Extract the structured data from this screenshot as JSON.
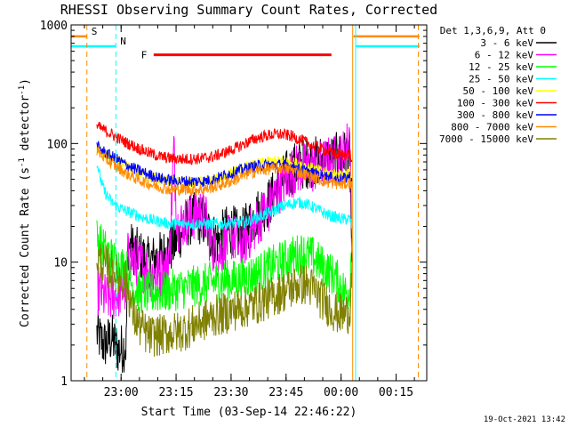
{
  "chart_data": {
    "type": "line",
    "title": "RHESSI Observing Summary Count Rates, Corrected",
    "xlabel": "Start Time (03-Sep-14 22:46:22)",
    "ylabel_parts": [
      "Corrected Count Rate (s",
      "-1",
      " detector",
      "-1",
      ")"
    ],
    "x_unit": "minutes since 22:46:22",
    "xlim": [
      0,
      97
    ],
    "ylim": [
      1,
      1000
    ],
    "y_scale": "log",
    "x_ticks": [
      {
        "t": 13.63,
        "label": "23:00"
      },
      {
        "t": 28.63,
        "label": "23:15"
      },
      {
        "t": 43.63,
        "label": "23:30"
      },
      {
        "t": 58.63,
        "label": "23:45"
      },
      {
        "t": 73.63,
        "label": "00:00"
      },
      {
        "t": 88.63,
        "label": "00:15"
      }
    ],
    "y_ticks": [
      {
        "v": 1,
        "label": "1"
      },
      {
        "v": 10,
        "label": "10"
      },
      {
        "v": 100,
        "label": "100"
      },
      {
        "v": 1000,
        "label": "1000"
      }
    ],
    "legend_header": "Det 1,3,6,9, Att 0",
    "legend_position": "right",
    "series": [
      {
        "name": "3 - 6 keV",
        "color": "#000000",
        "points": [
          [
            7,
            2.5
          ],
          [
            9,
            2.0
          ],
          [
            11,
            2.3
          ],
          [
            13,
            1.8
          ],
          [
            15,
            2.0
          ],
          [
            15.5,
            14
          ],
          [
            18,
            12
          ],
          [
            21,
            10
          ],
          [
            24,
            11
          ],
          [
            26,
            12
          ],
          [
            28,
            14
          ],
          [
            30,
            18
          ],
          [
            32,
            22
          ],
          [
            34,
            24
          ],
          [
            36,
            22
          ],
          [
            38,
            17
          ],
          [
            40,
            15
          ],
          [
            42,
            18
          ],
          [
            44,
            19
          ],
          [
            46,
            16
          ],
          [
            48,
            20
          ],
          [
            50,
            24
          ],
          [
            52,
            28
          ],
          [
            54,
            32
          ],
          [
            56,
            40
          ],
          [
            58,
            50
          ],
          [
            60,
            60
          ],
          [
            62,
            66
          ],
          [
            64,
            68
          ],
          [
            66,
            70
          ],
          [
            68,
            72
          ],
          [
            70,
            73
          ],
          [
            72,
            75
          ],
          [
            74,
            78
          ],
          [
            75,
            80
          ],
          [
            76,
            82
          ],
          [
            76.6,
            10
          ]
        ]
      },
      {
        "name": "6 - 12 keV",
        "color": "#ff00ff",
        "points": [
          [
            7,
            6
          ],
          [
            9,
            5
          ],
          [
            11,
            5
          ],
          [
            13,
            5.5
          ],
          [
            15,
            6
          ],
          [
            15.5,
            11
          ],
          [
            18,
            10
          ],
          [
            20,
            9
          ],
          [
            22,
            8
          ],
          [
            24,
            8
          ],
          [
            26,
            9
          ],
          [
            27,
            14
          ],
          [
            28,
            90
          ],
          [
            29,
            20
          ],
          [
            31,
            22
          ],
          [
            33,
            24
          ],
          [
            35,
            27
          ],
          [
            37,
            22
          ],
          [
            38,
            15
          ],
          [
            40,
            11
          ],
          [
            42,
            14
          ],
          [
            44,
            17
          ],
          [
            46,
            13
          ],
          [
            48,
            16
          ],
          [
            50,
            20
          ],
          [
            52,
            25
          ],
          [
            54,
            28
          ],
          [
            56,
            38
          ],
          [
            58,
            48
          ],
          [
            60,
            56
          ],
          [
            62,
            62
          ],
          [
            64,
            62
          ],
          [
            66,
            62
          ],
          [
            68,
            66
          ],
          [
            70,
            70
          ],
          [
            72,
            72
          ],
          [
            74,
            78
          ],
          [
            75,
            90
          ],
          [
            76,
            120
          ],
          [
            76.6,
            20
          ]
        ]
      },
      {
        "name": "12 - 25 keV",
        "color": "#00ff00",
        "points": [
          [
            7,
            16
          ],
          [
            9,
            13
          ],
          [
            11,
            11
          ],
          [
            13,
            9.5
          ],
          [
            15,
            9
          ],
          [
            17,
            6
          ],
          [
            19,
            5.5
          ],
          [
            21,
            5.5
          ],
          [
            24,
            5.5
          ],
          [
            27,
            5.7
          ],
          [
            30,
            6
          ],
          [
            33,
            6.2
          ],
          [
            36,
            6.5
          ],
          [
            39,
            6.8
          ],
          [
            42,
            7
          ],
          [
            45,
            7
          ],
          [
            48,
            7.5
          ],
          [
            51,
            8
          ],
          [
            54,
            9
          ],
          [
            57,
            10
          ],
          [
            60,
            11
          ],
          [
            63,
            12
          ],
          [
            66,
            11
          ],
          [
            69,
            9
          ],
          [
            72,
            7.5
          ],
          [
            74,
            6
          ],
          [
            75,
            5.5
          ],
          [
            76,
            6
          ],
          [
            76.6,
            16
          ]
        ]
      },
      {
        "name": "25 - 50 keV",
        "color": "#00ffff",
        "points": [
          [
            7,
            70
          ],
          [
            8,
            50
          ],
          [
            9,
            40
          ],
          [
            11,
            32
          ],
          [
            13,
            29
          ],
          [
            15,
            27
          ],
          [
            18,
            25
          ],
          [
            21,
            23
          ],
          [
            24,
            22
          ],
          [
            27,
            21
          ],
          [
            30,
            21
          ],
          [
            33,
            21
          ],
          [
            36,
            21
          ],
          [
            39,
            21
          ],
          [
            42,
            21
          ],
          [
            45,
            21.5
          ],
          [
            48,
            22
          ],
          [
            51,
            24
          ],
          [
            54,
            26
          ],
          [
            57,
            29
          ],
          [
            60,
            31
          ],
          [
            62,
            32
          ],
          [
            64,
            31
          ],
          [
            66,
            29
          ],
          [
            68,
            27
          ],
          [
            70,
            25
          ],
          [
            72,
            24
          ],
          [
            74,
            23
          ],
          [
            76,
            23
          ],
          [
            76.6,
            20
          ]
        ]
      },
      {
        "name": "50 - 100 keV",
        "color": "#ffff00",
        "points": [
          [
            7,
            90
          ],
          [
            9,
            80
          ],
          [
            11,
            75
          ],
          [
            13,
            70
          ],
          [
            15,
            64
          ],
          [
            18,
            58
          ],
          [
            21,
            53
          ],
          [
            24,
            50
          ],
          [
            27,
            48
          ],
          [
            30,
            47
          ],
          [
            33,
            47
          ],
          [
            36,
            47
          ],
          [
            39,
            49
          ],
          [
            42,
            53
          ],
          [
            45,
            58
          ],
          [
            48,
            63
          ],
          [
            51,
            67
          ],
          [
            54,
            70
          ],
          [
            57,
            71
          ],
          [
            60,
            70
          ],
          [
            63,
            66
          ],
          [
            66,
            61
          ],
          [
            69,
            57
          ],
          [
            72,
            55
          ],
          [
            74,
            54
          ],
          [
            76,
            58
          ],
          [
            76.6,
            50
          ]
        ]
      },
      {
        "name": "100 - 300 keV",
        "color": "#ff0000",
        "points": [
          [
            7,
            140
          ],
          [
            9,
            130
          ],
          [
            11,
            120
          ],
          [
            13,
            110
          ],
          [
            15,
            102
          ],
          [
            18,
            92
          ],
          [
            21,
            84
          ],
          [
            24,
            78
          ],
          [
            27,
            75
          ],
          [
            30,
            74
          ],
          [
            33,
            74
          ],
          [
            36,
            75
          ],
          [
            39,
            78
          ],
          [
            42,
            84
          ],
          [
            45,
            92
          ],
          [
            48,
            102
          ],
          [
            51,
            112
          ],
          [
            54,
            118
          ],
          [
            57,
            120
          ],
          [
            60,
            116
          ],
          [
            63,
            106
          ],
          [
            66,
            96
          ],
          [
            69,
            88
          ],
          [
            72,
            82
          ],
          [
            74,
            80
          ],
          [
            76,
            82
          ],
          [
            76.6,
            70
          ]
        ]
      },
      {
        "name": "300 - 800 keV",
        "color": "#0000ff",
        "points": [
          [
            7,
            95
          ],
          [
            9,
            85
          ],
          [
            11,
            78
          ],
          [
            13,
            72
          ],
          [
            15,
            66
          ],
          [
            18,
            60
          ],
          [
            21,
            55
          ],
          [
            24,
            51
          ],
          [
            27,
            49
          ],
          [
            30,
            48
          ],
          [
            33,
            48
          ],
          [
            36,
            48
          ],
          [
            39,
            50
          ],
          [
            42,
            54
          ],
          [
            45,
            58
          ],
          [
            48,
            62
          ],
          [
            51,
            65
          ],
          [
            54,
            66
          ],
          [
            57,
            66
          ],
          [
            60,
            64
          ],
          [
            63,
            60
          ],
          [
            66,
            56
          ],
          [
            69,
            53
          ],
          [
            72,
            51
          ],
          [
            74,
            50
          ],
          [
            76,
            53
          ],
          [
            76.6,
            48
          ]
        ]
      },
      {
        "name": "800 - 7000 keV",
        "color": "#ff8c00",
        "points": [
          [
            7,
            88
          ],
          [
            9,
            76
          ],
          [
            11,
            68
          ],
          [
            13,
            62
          ],
          [
            15,
            56
          ],
          [
            18,
            50
          ],
          [
            21,
            46
          ],
          [
            24,
            43
          ],
          [
            27,
            41
          ],
          [
            30,
            41
          ],
          [
            33,
            41
          ],
          [
            36,
            41
          ],
          [
            39,
            43
          ],
          [
            42,
            46
          ],
          [
            45,
            50
          ],
          [
            48,
            55
          ],
          [
            51,
            59
          ],
          [
            54,
            61
          ],
          [
            57,
            62
          ],
          [
            60,
            60
          ],
          [
            63,
            56
          ],
          [
            66,
            52
          ],
          [
            69,
            48
          ],
          [
            72,
            46
          ],
          [
            74,
            45
          ],
          [
            76,
            47
          ],
          [
            76.6,
            43
          ]
        ]
      },
      {
        "name": "7000 - 15000 keV",
        "color": "#808000",
        "points": [
          [
            7,
            11
          ],
          [
            9,
            9.5
          ],
          [
            11,
            8.5
          ],
          [
            13,
            7.5
          ],
          [
            15,
            7
          ],
          [
            17,
            3.5
          ],
          [
            19,
            2.8
          ],
          [
            21,
            2.4
          ],
          [
            24,
            2.4
          ],
          [
            27,
            2.5
          ],
          [
            30,
            2.6
          ],
          [
            33,
            2.9
          ],
          [
            36,
            3.2
          ],
          [
            39,
            3.5
          ],
          [
            42,
            3.7
          ],
          [
            45,
            4
          ],
          [
            48,
            4.2
          ],
          [
            51,
            4.5
          ],
          [
            54,
            5
          ],
          [
            57,
            5.5
          ],
          [
            60,
            6
          ],
          [
            62,
            6.5
          ],
          [
            64,
            6.5
          ],
          [
            66,
            6
          ],
          [
            68,
            5
          ],
          [
            70,
            4.3
          ],
          [
            72,
            3.8
          ],
          [
            74,
            3.6
          ],
          [
            76,
            3.8
          ],
          [
            76.6,
            10
          ]
        ]
      }
    ],
    "annotations": {
      "flag_S": {
        "label": "S",
        "color": "#ff8c00",
        "t_start": 0,
        "t_end": 4.3,
        "level": 800
      },
      "flag_N": {
        "label": "N",
        "color": "#00ffff",
        "t_start": 0,
        "t_end": 12.2,
        "level": 660
      },
      "flag_F": {
        "label": "F",
        "color": "#ff0000",
        "t_start": 22.5,
        "t_end": 71,
        "level": 560
      },
      "flag_S_right": {
        "color": "#ff8c00",
        "t_start": 77,
        "t_end": 95,
        "level": 800
      },
      "flag_N_right": {
        "color": "#00ffff",
        "t_start": 77.5,
        "t_end": 95,
        "level": 660
      },
      "vlines": [
        {
          "t": 4.3,
          "color": "#ff8c00",
          "dashed": true
        },
        {
          "t": 12.2,
          "color": "#00ffff",
          "dashed": true
        },
        {
          "t": 76.8,
          "color": "#ff8c00",
          "dashed": false
        },
        {
          "t": 77.6,
          "color": "#00ffff",
          "dashed": false
        },
        {
          "t": 94.7,
          "color": "#ff8c00",
          "dashed": true
        }
      ]
    }
  },
  "footer": {
    "timestamp": "19-Oct-2021 13:42"
  }
}
